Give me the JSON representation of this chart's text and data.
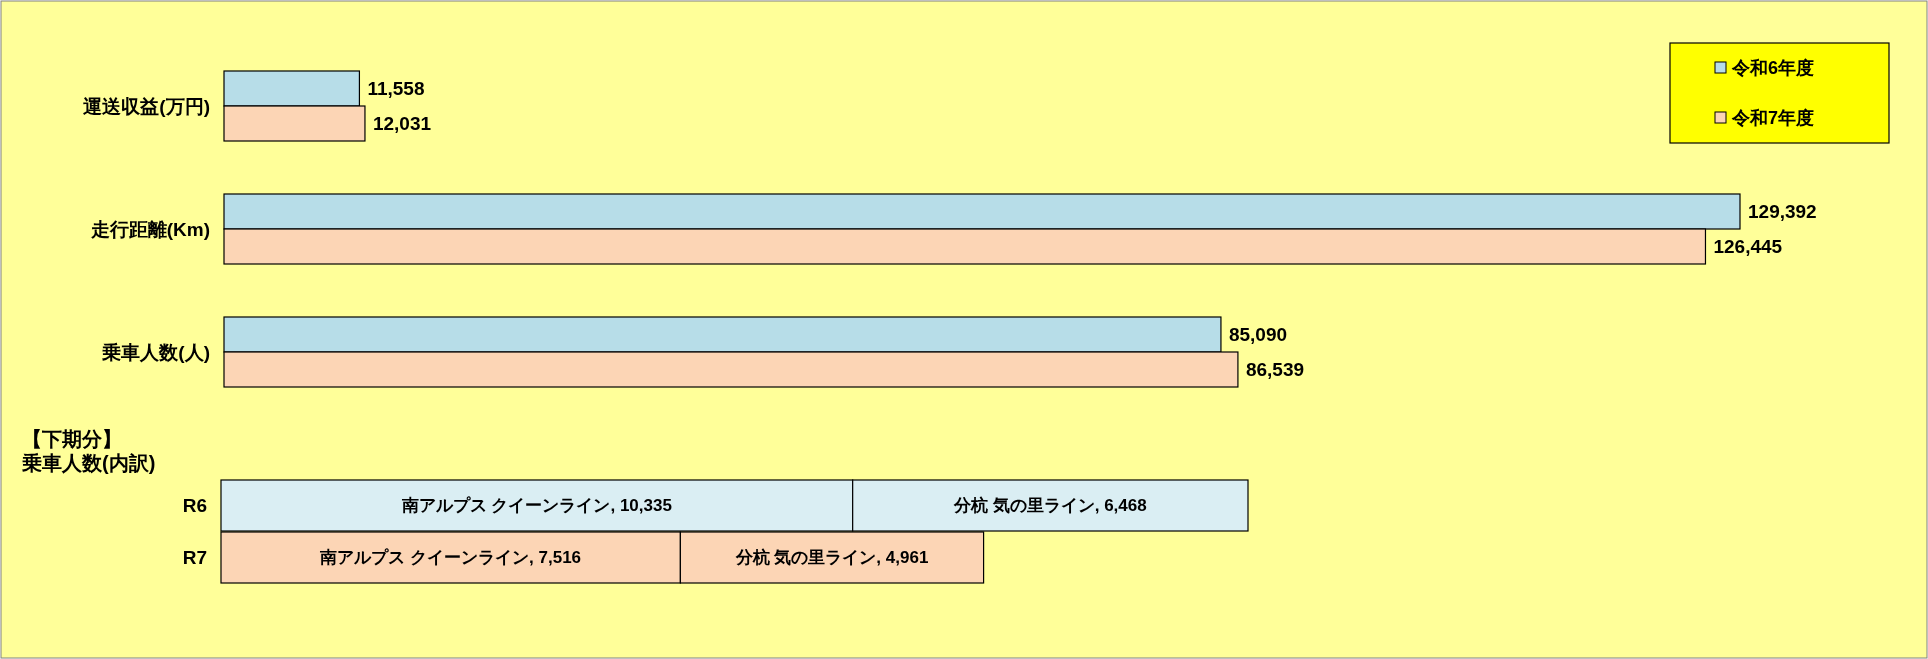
{
  "chart_data": [
    {
      "type": "bar",
      "orientation": "horizontal",
      "categories": [
        "運送収益(万円)",
        "走行距離(Km)",
        "乗車人数(人)"
      ],
      "series": [
        {
          "name": "令和6年度",
          "color": "#b7dde8",
          "values": [
            11558,
            129392,
            85090
          ],
          "value_labels": [
            "11,558",
            "129,392",
            "85,090"
          ]
        },
        {
          "name": "令和7年度",
          "color": "#fcd5b5",
          "values": [
            12031,
            126445,
            86539
          ],
          "value_labels": [
            "12,031",
            "126,445",
            "86,539"
          ]
        }
      ],
      "legend": "top right"
    },
    {
      "type": "bar",
      "orientation": "horizontal",
      "stacked": true,
      "title": "【下期分】",
      "subtitle": "乗車人数(内訳)",
      "categories": [
        "R6",
        "R7"
      ],
      "series": [
        {
          "colors": [
            "#daeef3",
            "#fcd5b5"
          ],
          "values": [
            10335,
            7516
          ],
          "value_labels": [
            "南アルプス クイーンライン, 10,335",
            "南アルプス クイーンライン, 7,516"
          ]
        },
        {
          "colors": [
            "#daeef3",
            "#fcd5b5"
          ],
          "values": [
            6468,
            4961
          ],
          "value_labels": [
            "分杭 気の里ライン, 6,468",
            "分杭 気の里ライン, 4,961"
          ]
        }
      ]
    }
  ]
}
